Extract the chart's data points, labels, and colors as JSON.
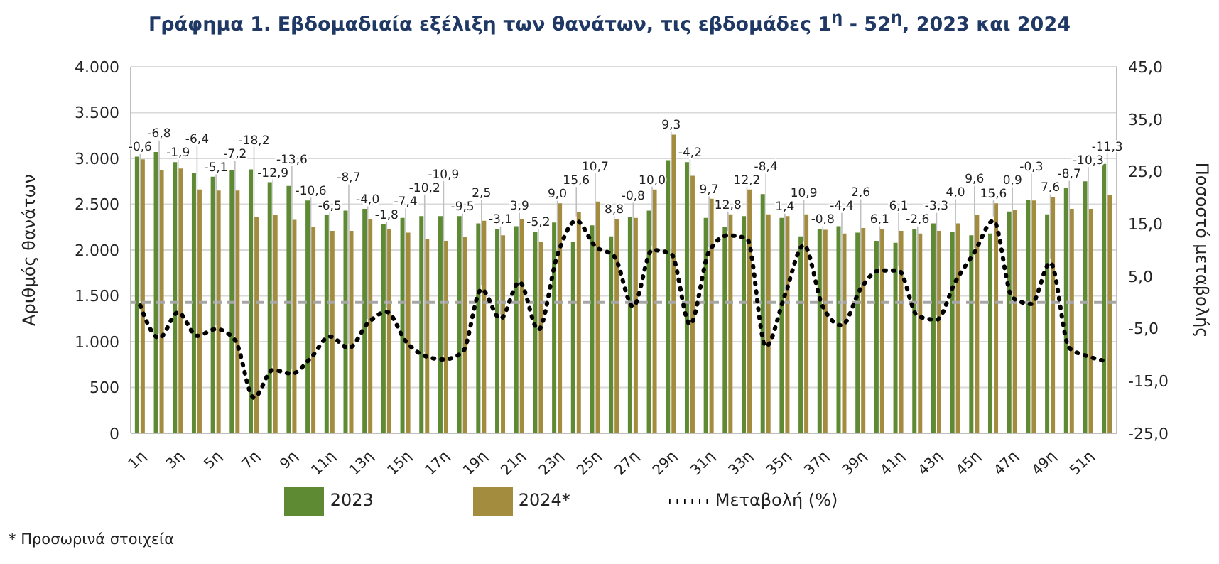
{
  "chart_data": {
    "type": "bar",
    "title": "Γράφημα 1.  Εβδομαδιαία εξέλιξη των θανάτων, τις εβδομάδες 1$^{η}$ - 52$^{η}$, 2023 και 2024",
    "ylabel": "Αριθμός θανάτων",
    "y2label": "Ποσοστό μεταβολής",
    "categories": [
      "1η",
      null,
      "3η",
      null,
      "5η",
      null,
      "7η",
      null,
      "9η",
      null,
      "11η",
      null,
      "13η",
      null,
      "15η",
      null,
      "17η",
      null,
      "19η",
      null,
      "21η",
      null,
      "23η",
      null,
      "25η",
      null,
      "27η",
      null,
      "29η",
      null,
      "31η",
      null,
      "33η",
      null,
      "35η",
      null,
      "37η",
      null,
      "39η",
      null,
      "41η",
      null,
      "43η",
      null,
      "45η",
      null,
      "47η",
      null,
      "49η",
      null,
      "51η",
      null
    ],
    "series": [
      {
        "name": "2023",
        "color": "#5e8a34",
        "values": [
          3020,
          3070,
          2960,
          2840,
          2800,
          2870,
          2880,
          2740,
          2700,
          2540,
          2380,
          2430,
          2450,
          2280,
          2350,
          2370,
          2370,
          2370,
          2290,
          2230,
          2260,
          2200,
          2300,
          2090,
          2270,
          2150,
          2360,
          2430,
          2980,
          2960,
          2350,
          2250,
          2370,
          2610,
          2350,
          2150,
          2230,
          2260,
          2190,
          2100,
          2080,
          2230,
          2290,
          2200,
          2160,
          2180,
          2420,
          2550,
          2390,
          2680,
          2750,
          2940
        ]
      },
      {
        "name": "2024*",
        "color": "#a48c3e",
        "values": [
          2990,
          2870,
          2890,
          2660,
          2650,
          2650,
          2360,
          2380,
          2330,
          2250,
          2210,
          2210,
          2340,
          2230,
          2190,
          2120,
          2100,
          2140,
          2320,
          2160,
          2340,
          2090,
          2510,
          2410,
          2530,
          2340,
          2350,
          2660,
          3260,
          2810,
          2560,
          2390,
          2660,
          2390,
          2370,
          2390,
          2220,
          2180,
          2240,
          2230,
          2210,
          2180,
          2210,
          2290,
          2380,
          2510,
          2440,
          2540,
          2580,
          2450,
          2450,
          2600
        ]
      },
      {
        "name": "Μεταβολή (%)",
        "type": "line",
        "axis": "y2",
        "color": "#000000",
        "line_style": "dotted",
        "marker": "none",
        "values": [
          -0.6,
          -6.8,
          -1.9,
          -6.4,
          -5.1,
          -7.2,
          -18.2,
          -12.9,
          -13.6,
          -10.6,
          -6.5,
          -8.7,
          -4.0,
          -1.8,
          -7.4,
          -10.2,
          -10.9,
          -9.5,
          2.5,
          -3.1,
          3.9,
          -5.2,
          9.0,
          15.6,
          10.7,
          8.8,
          -0.8,
          10.0,
          9.3,
          -4.2,
          9.7,
          12.8,
          12.2,
          -8.4,
          1.4,
          10.9,
          -0.8,
          -4.4,
          2.6,
          6.1,
          6.1,
          -2.6,
          -3.3,
          4.0,
          9.6,
          15.6,
          0.9,
          -0.3,
          7.6,
          -8.7,
          -10.3,
          -11.3
        ],
        "value_labels": [
          "-0,6",
          "-6,8",
          "-1,9",
          "-6,4",
          "-5,1",
          "-7,2",
          "-18,2",
          "-12,9",
          "-13,6",
          "-10,6",
          "-6,5",
          "-8,7",
          "-4,0",
          "-1,8",
          "-7,4",
          "-10,2",
          "-10,9",
          "-9,5",
          "2,5",
          "-3,1",
          "3,9",
          "-5,2",
          "9,0",
          "15,6",
          "10,7",
          "8,8",
          "-0,8",
          "10,0",
          "9,3",
          "-4,2",
          "9,7",
          "12,8",
          "12,2",
          "-8,4",
          "1,4",
          "10,9",
          "-0,8",
          "-4,4",
          "2,6",
          "6,1",
          "6,1",
          "-2,6",
          "-3,3",
          "4,0",
          "9,6",
          "15,6",
          "0,9",
          "-0,3",
          "7,6",
          "-8,7",
          "-10,3",
          "-11,3"
        ]
      }
    ],
    "ylim": [
      0,
      4000
    ],
    "yticks": [
      {
        "value": 0,
        "label": "0"
      },
      {
        "value": 500,
        "label": "500"
      },
      {
        "value": 1000,
        "label": "1.000"
      },
      {
        "value": 1500,
        "label": "1.500"
      },
      {
        "value": 2000,
        "label": "2.000"
      },
      {
        "value": 2500,
        "label": "2.500"
      },
      {
        "value": 3000,
        "label": "3.000"
      },
      {
        "value": 3500,
        "label": "3.500"
      },
      {
        "value": 4000,
        "label": "4.000"
      }
    ],
    "y2lim": [
      -25,
      45
    ],
    "y2ticks": [
      {
        "value": -25,
        "label": "-25,0"
      },
      {
        "value": -15,
        "label": "-15,0"
      },
      {
        "value": -5,
        "label": "-5,0"
      },
      {
        "value": 5,
        "label": "5,0"
      },
      {
        "value": 15,
        "label": "15,0"
      },
      {
        "value": 25,
        "label": "25,0"
      },
      {
        "value": 35,
        "label": "35,0"
      },
      {
        "value": 45,
        "label": "45,0"
      }
    ],
    "ref_lines": [
      {
        "axis": "y2",
        "value": 0,
        "color": "#a6a6a6",
        "line_style": "dashed"
      }
    ],
    "grid": "y",
    "legend": "bottom",
    "annotations": [
      "* Προσωρινά στοιχεία"
    ]
  }
}
